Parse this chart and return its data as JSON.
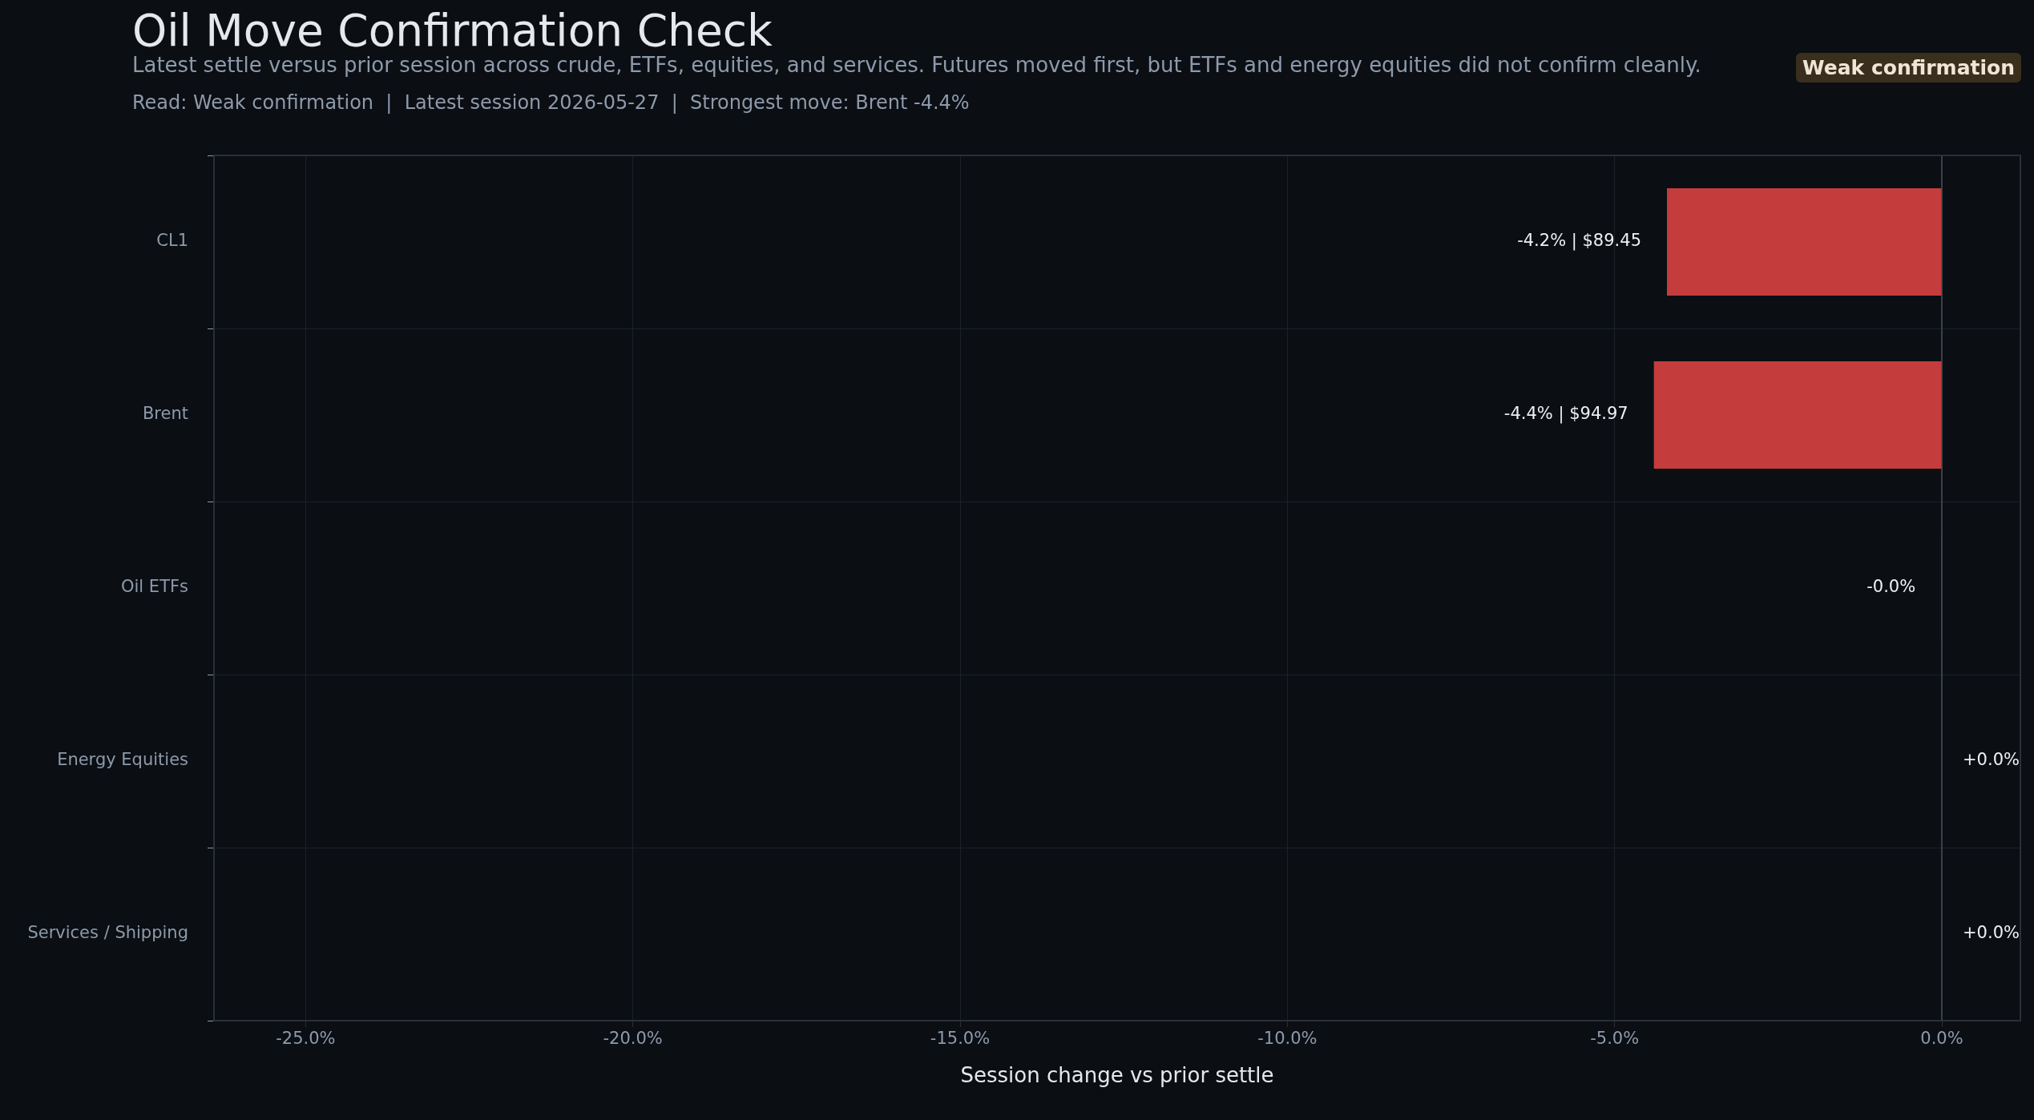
{
  "chart_data": {
    "type": "bar",
    "orientation": "horizontal",
    "title": "Oil Move Confirmation Check",
    "subtitle": "Latest settle versus prior session across crude, ETFs, equities, and services. Futures moved first, but ETFs and energy equities did not confirm cleanly.",
    "annotations": [
      "Read: Weak confirmation  |  Latest session 2026-05-27  |  Strongest move: Brent -4.4%",
      "Weak confirmation"
    ],
    "xlabel": "Session change vs prior settle",
    "categories": [
      "CL1",
      "Brent",
      "Oil ETFs",
      "Energy Equities",
      "Services / Shipping"
    ],
    "values": [
      -4.2,
      -4.4,
      -0.01,
      0,
      0
    ],
    "value_labels": [
      "-4.2% | $89.45",
      "-4.4% | $94.97",
      "-0.0%",
      "+0.0%",
      "+0.0%"
    ],
    "color": "#c43c3c",
    "xlim": [
      -26.4,
      1.2
    ],
    "xticks": [
      {
        "value": -25,
        "label": "-25.0%"
      },
      {
        "value": -20,
        "label": "-20.0%"
      },
      {
        "value": -15,
        "label": "-15.0%"
      },
      {
        "value": -10,
        "label": "-10.0%"
      },
      {
        "value": -5,
        "label": "-5.0%"
      },
      {
        "value": 0,
        "label": "0.0%"
      }
    ],
    "ref_lines": [
      {
        "axis": "x",
        "value": 0,
        "color": "#3a3f48"
      }
    ],
    "grid": true,
    "legend": false
  }
}
